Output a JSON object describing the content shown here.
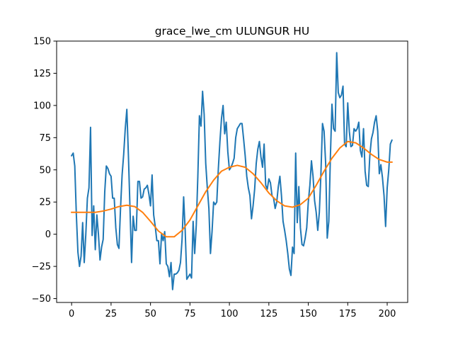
{
  "chart_data": {
    "type": "line",
    "title": "grace_lwe_cm ULUNGUR HU",
    "xlabel": "",
    "ylabel": "",
    "xlim": [
      -9.5,
      213
    ],
    "ylim": [
      -53,
      150
    ],
    "xticks": [
      0,
      25,
      50,
      75,
      100,
      125,
      150,
      175,
      200
    ],
    "yticks": [
      -50,
      -25,
      0,
      25,
      50,
      75,
      100,
      125,
      150
    ],
    "grid": false,
    "legend": "none",
    "series": [
      {
        "color": "#1f77b4",
        "x": [
          0,
          1,
          2,
          3,
          4,
          5,
          6,
          7,
          8,
          9,
          10,
          11,
          12,
          13,
          14,
          15,
          16,
          17,
          18,
          19,
          20,
          21,
          22,
          23,
          24,
          25,
          26,
          27,
          28,
          29,
          30,
          31,
          32,
          33,
          34,
          35,
          36,
          37,
          38,
          39,
          40,
          41,
          42,
          43,
          44,
          45,
          46,
          47,
          48,
          49,
          50,
          51,
          52,
          53,
          54,
          55,
          56,
          57,
          58,
          59,
          60,
          61,
          62,
          63,
          64,
          65,
          66,
          67,
          68,
          69,
          70,
          71,
          72,
          73,
          74,
          75,
          76,
          77,
          78,
          79,
          80,
          81,
          82,
          83,
          84,
          85,
          86,
          87,
          88,
          89,
          90,
          91,
          92,
          93,
          94,
          95,
          96,
          97,
          98,
          99,
          100,
          101,
          102,
          103,
          104,
          105,
          106,
          107,
          108,
          109,
          110,
          111,
          112,
          113,
          114,
          115,
          116,
          117,
          118,
          119,
          120,
          121,
          122,
          123,
          124,
          125,
          126,
          127,
          128,
          129,
          130,
          131,
          132,
          133,
          134,
          135,
          136,
          137,
          138,
          139,
          140,
          141,
          142,
          143,
          144,
          145,
          146,
          147,
          148,
          149,
          150,
          151,
          152,
          153,
          154,
          155,
          156,
          157,
          158,
          159,
          160,
          161,
          162,
          163,
          164,
          165,
          166,
          167,
          168,
          169,
          170,
          171,
          172,
          173,
          174,
          175,
          176,
          177,
          178,
          179,
          180,
          181,
          182,
          183,
          184,
          185,
          186,
          187,
          188,
          189,
          190,
          191,
          192,
          193,
          194,
          195,
          196,
          197,
          198,
          199,
          200,
          201,
          202,
          203
        ],
        "y": [
          61,
          63,
          53,
          15,
          -14,
          -25,
          -17,
          9,
          -22,
          0,
          28,
          36,
          83,
          -1,
          22,
          -12,
          15,
          0,
          -20,
          -10,
          -4,
          33,
          53,
          51,
          47,
          45,
          28,
          28,
          5,
          -8,
          -11,
          20,
          46,
          62,
          82,
          97,
          61,
          20,
          -22,
          14,
          3,
          3,
          41,
          41,
          28,
          29,
          35,
          36,
          38,
          31,
          22,
          46,
          15,
          6,
          -5,
          -5,
          -23,
          0,
          -5,
          2,
          -23,
          -25,
          -33,
          -22,
          -43,
          -31,
          -31,
          -30,
          -28,
          -22,
          -4,
          29,
          2,
          -35,
          -33,
          -31,
          -34,
          10,
          -15,
          7,
          45,
          92,
          84,
          111,
          93,
          55,
          36,
          20,
          -15,
          2,
          25,
          23,
          25,
          51,
          72,
          90,
          100,
          78,
          87,
          64,
          50,
          52,
          55,
          59,
          75,
          82,
          84,
          86,
          86,
          74,
          61,
          45,
          36,
          30,
          12,
          22,
          35,
          55,
          66,
          72,
          60,
          52,
          70,
          38,
          35,
          43,
          40,
          30,
          28,
          20,
          25,
          37,
          45,
          30,
          10,
          3,
          -5,
          -15,
          -27,
          -32,
          -10,
          -15,
          63,
          9,
          37,
          5,
          -8,
          -9,
          -3,
          5,
          25,
          38,
          57,
          45,
          26,
          17,
          3,
          17,
          47,
          86,
          80,
          55,
          -3,
          10,
          60,
          101,
          82,
          80,
          141,
          110,
          106,
          108,
          115,
          70,
          68,
          102,
          80,
          68,
          69,
          82,
          80,
          82,
          87,
          65,
          60,
          82,
          49,
          38,
          37,
          61,
          74,
          79,
          87,
          92,
          80,
          47,
          54,
          44,
          30,
          6,
          36,
          50,
          70,
          73
        ]
      },
      {
        "color": "#ff7f0e",
        "x": [
          0,
          5,
          10,
          15,
          20,
          25,
          30,
          35,
          40,
          45,
          50,
          55,
          60,
          65,
          70,
          75,
          80,
          85,
          90,
          95,
          100,
          105,
          110,
          115,
          120,
          125,
          130,
          135,
          140,
          145,
          150,
          155,
          160,
          165,
          170,
          175,
          180,
          185,
          190,
          195,
          200,
          203
        ],
        "y": [
          17,
          17,
          17,
          17,
          18,
          19.5,
          21.5,
          22.5,
          21.5,
          17,
          10,
          2.5,
          -2,
          -2,
          3,
          11,
          22,
          33,
          42,
          49,
          52,
          53.5,
          52,
          47,
          40,
          32,
          26,
          22,
          21,
          23,
          28,
          38,
          49,
          59,
          67,
          72,
          71,
          67,
          62,
          58,
          56,
          56
        ]
      }
    ]
  }
}
